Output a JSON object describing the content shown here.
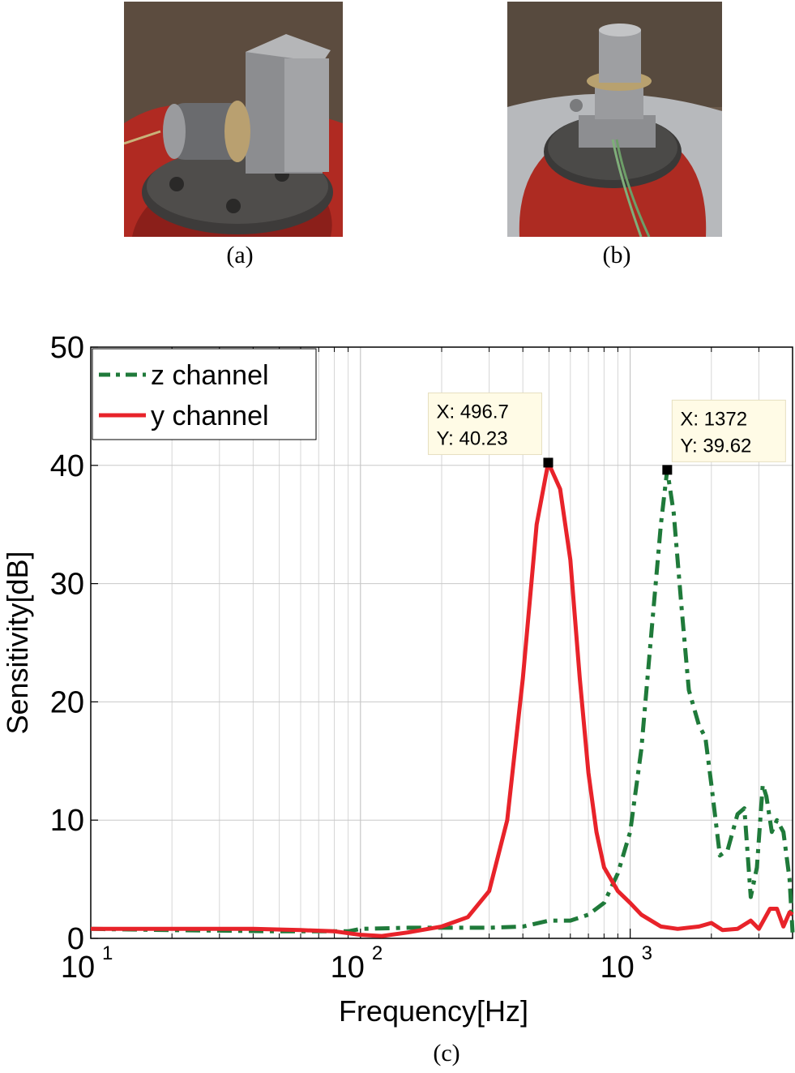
{
  "captions": {
    "a": "(a)",
    "b": "(b)",
    "c": "(c)"
  },
  "chart_data": {
    "type": "line",
    "x_scale": "log",
    "xlabel": "Frequency[Hz]",
    "ylabel": "Sensitivity[dB]",
    "xlim": [
      10,
      4000
    ],
    "ylim": [
      0,
      50
    ],
    "x_ticks": [
      {
        "base": "10",
        "exp": "1",
        "value": 10
      },
      {
        "base": "10",
        "exp": "2",
        "value": 100
      },
      {
        "base": "10",
        "exp": "3",
        "value": 1000
      }
    ],
    "y_ticks": [
      "0",
      "10",
      "20",
      "30",
      "40",
      "50"
    ],
    "grid": true,
    "legend_position": "top-left",
    "series": [
      {
        "name": "z channel",
        "color": "#1f7a3a",
        "style": "dash-dot",
        "points": [
          [
            10,
            0.8
          ],
          [
            20,
            0.7
          ],
          [
            50,
            0.6
          ],
          [
            90,
            0.6
          ],
          [
            100,
            0.8
          ],
          [
            150,
            0.9
          ],
          [
            200,
            0.9
          ],
          [
            300,
            0.9
          ],
          [
            400,
            1.0
          ],
          [
            500,
            1.5
          ],
          [
            600,
            1.5
          ],
          [
            700,
            2.0
          ],
          [
            800,
            3.0
          ],
          [
            900,
            5.5
          ],
          [
            1000,
            9.0
          ],
          [
            1100,
            16.0
          ],
          [
            1200,
            26.0
          ],
          [
            1300,
            35.0
          ],
          [
            1372,
            39.62
          ],
          [
            1450,
            36.0
          ],
          [
            1550,
            28.0
          ],
          [
            1650,
            21.0
          ],
          [
            1800,
            18.0
          ],
          [
            1900,
            17.0
          ],
          [
            2000,
            13.0
          ],
          [
            2150,
            7.0
          ],
          [
            2300,
            7.5
          ],
          [
            2500,
            10.5
          ],
          [
            2650,
            11.0
          ],
          [
            2800,
            3.5
          ],
          [
            2950,
            6.0
          ],
          [
            3100,
            13.0
          ],
          [
            3200,
            12.0
          ],
          [
            3350,
            9.0
          ],
          [
            3500,
            10.0
          ],
          [
            3700,
            9.0
          ],
          [
            3900,
            5.0
          ],
          [
            4000,
            0.5
          ]
        ]
      },
      {
        "name": "y channel",
        "color": "#e8232a",
        "style": "solid",
        "points": [
          [
            10,
            0.8
          ],
          [
            20,
            0.8
          ],
          [
            40,
            0.8
          ],
          [
            60,
            0.7
          ],
          [
            80,
            0.6
          ],
          [
            100,
            0.3
          ],
          [
            120,
            0.2
          ],
          [
            150,
            0.5
          ],
          [
            200,
            1.0
          ],
          [
            250,
            1.8
          ],
          [
            300,
            4.0
          ],
          [
            350,
            10.0
          ],
          [
            400,
            22.0
          ],
          [
            450,
            35.0
          ],
          [
            496.7,
            40.23
          ],
          [
            550,
            38.0
          ],
          [
            600,
            32.0
          ],
          [
            650,
            22.0
          ],
          [
            700,
            14.0
          ],
          [
            750,
            9.0
          ],
          [
            800,
            6.0
          ],
          [
            900,
            4.0
          ],
          [
            1000,
            3.0
          ],
          [
            1100,
            2.0
          ],
          [
            1300,
            1.0
          ],
          [
            1500,
            0.8
          ],
          [
            1800,
            1.0
          ],
          [
            2000,
            1.3
          ],
          [
            2200,
            0.7
          ],
          [
            2500,
            0.8
          ],
          [
            2800,
            1.5
          ],
          [
            3000,
            0.8
          ],
          [
            3300,
            2.5
          ],
          [
            3500,
            2.5
          ],
          [
            3700,
            1.0
          ],
          [
            3900,
            2.2
          ],
          [
            4000,
            2.0
          ]
        ]
      }
    ],
    "annotations": [
      {
        "line1": "X: 496.7",
        "line2": "Y: 40.23",
        "x": 496.7,
        "y": 40.23
      },
      {
        "line1": "X: 1372",
        "line2": "Y: 39.62",
        "x": 1372,
        "y": 39.62
      }
    ]
  }
}
